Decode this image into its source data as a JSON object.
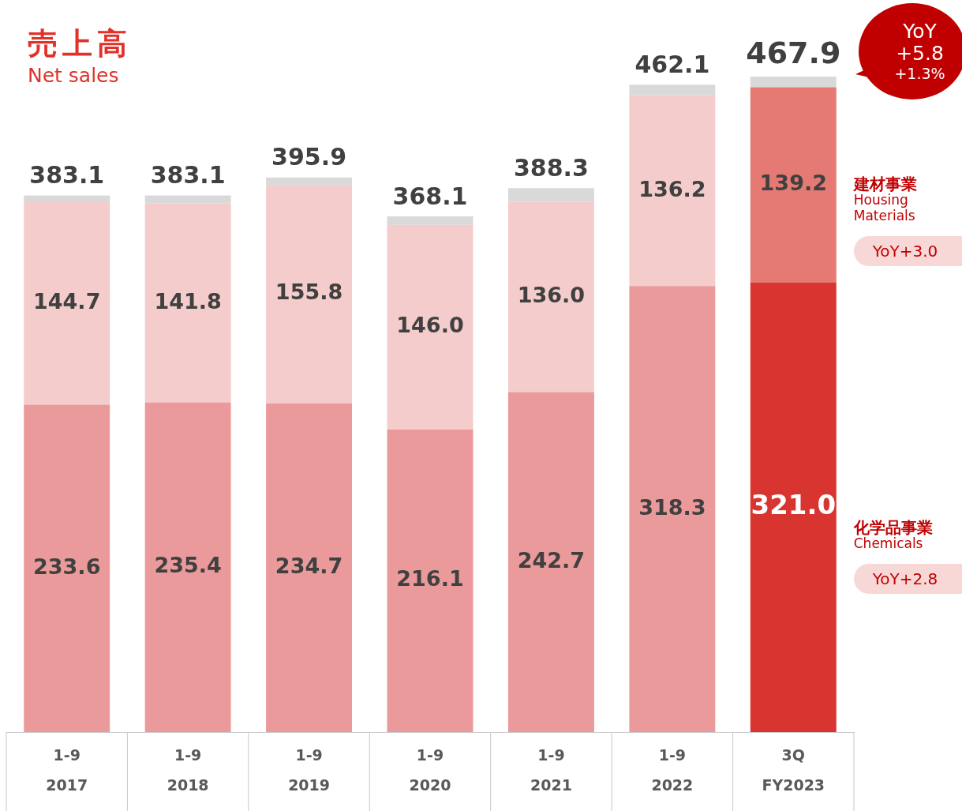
{
  "chart_data": {
    "type": "bar",
    "title": "売上高",
    "subtitle": "Net sales",
    "categories": [
      "1-9\n2017",
      "1-9\n2018",
      "1-9\n2019",
      "1-9\n2020",
      "1-9\n2021",
      "1-9\n2022",
      "3Q\nFY2023"
    ],
    "stacked": true,
    "legend": false,
    "grid": false,
    "tick_labels": "x",
    "series": [
      {
        "name": "化学品事業\nChemicals",
        "colors": [
          "#ea9a9a",
          "#ea9a9a",
          "#ea9a9a",
          "#ea9a9a",
          "#ea9a9a",
          "#ea9a9a",
          "#d93530"
        ],
        "values": [
          233.6,
          235.4,
          234.7,
          216.1,
          242.7,
          318.3,
          321.0
        ],
        "value_labels": [
          "233.6",
          "235.4",
          "234.7",
          "216.1",
          "242.7",
          "318.3",
          "321.0"
        ]
      },
      {
        "name": "建材事業\nHousing\nMaterials",
        "colors": [
          "#f4cccc",
          "#f4cccc",
          "#f4cccc",
          "#f4cccc",
          "#f4cccc",
          "#f4cccc",
          "#e57a75"
        ],
        "values": [
          144.7,
          141.8,
          155.8,
          146.0,
          136.0,
          136.2,
          139.2
        ],
        "value_labels": [
          "144.7",
          "141.8",
          "155.8",
          "146.0",
          "136.0",
          "136.2",
          "139.2"
        ]
      },
      {
        "color": "#d9d9d9",
        "values": [
          4.8,
          5.9,
          5.4,
          6.0,
          9.6,
          7.6,
          7.7
        ]
      }
    ],
    "totals": [
      "383.1",
      "383.1",
      "395.9",
      "368.1",
      "388.3",
      "462.1",
      "467.9"
    ],
    "annotations": [
      "YoY\n+5.8\n+1.3%",
      "YoY+2.8",
      "YoY+3.0"
    ]
  }
}
